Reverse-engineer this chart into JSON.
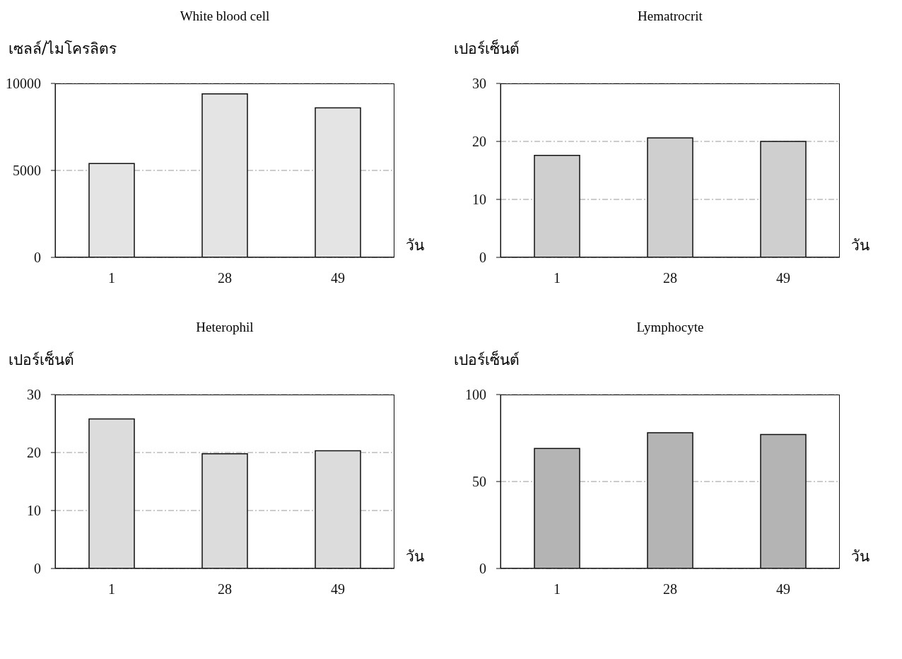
{
  "chart_data": [
    {
      "type": "bar",
      "title": "White blood cell",
      "ylabel": "เซลล์/ไมโครลิตร",
      "xlabel": "วัน",
      "categories": [
        "1",
        "28",
        "49"
      ],
      "values": [
        5400,
        9400,
        8600
      ],
      "color": "#e4e4e4",
      "ylim": [
        0,
        10000
      ],
      "yticks": [
        0,
        5000,
        10000
      ],
      "grid": "y"
    },
    {
      "type": "bar",
      "title": "Hematrocrit",
      "ylabel": "เปอร์เซ็นต์",
      "xlabel": "วัน",
      "categories": [
        "1",
        "28",
        "49"
      ],
      "values": [
        17.6,
        20.6,
        20.0
      ],
      "color": "#cfcfcf",
      "ylim": [
        0,
        30
      ],
      "yticks": [
        0,
        10,
        20,
        30
      ],
      "grid": "y"
    },
    {
      "type": "bar",
      "title": "Heterophil",
      "ylabel": "เปอร์เซ็นต์",
      "xlabel": "วัน",
      "categories": [
        "1",
        "28",
        "49"
      ],
      "values": [
        25.8,
        19.8,
        20.3
      ],
      "color": "#dcdcdc",
      "ylim": [
        0,
        30
      ],
      "yticks": [
        0,
        10,
        20,
        30
      ],
      "grid": "y"
    },
    {
      "type": "bar",
      "title": "Lymphocyte",
      "ylabel": "เปอร์เซ็นต์",
      "xlabel": "วัน",
      "categories": [
        "1",
        "28",
        "49"
      ],
      "values": [
        69,
        78,
        77
      ],
      "color": "#b4b4b4",
      "ylim": [
        0,
        100
      ],
      "yticks": [
        0,
        50,
        100
      ],
      "grid": "y"
    }
  ]
}
